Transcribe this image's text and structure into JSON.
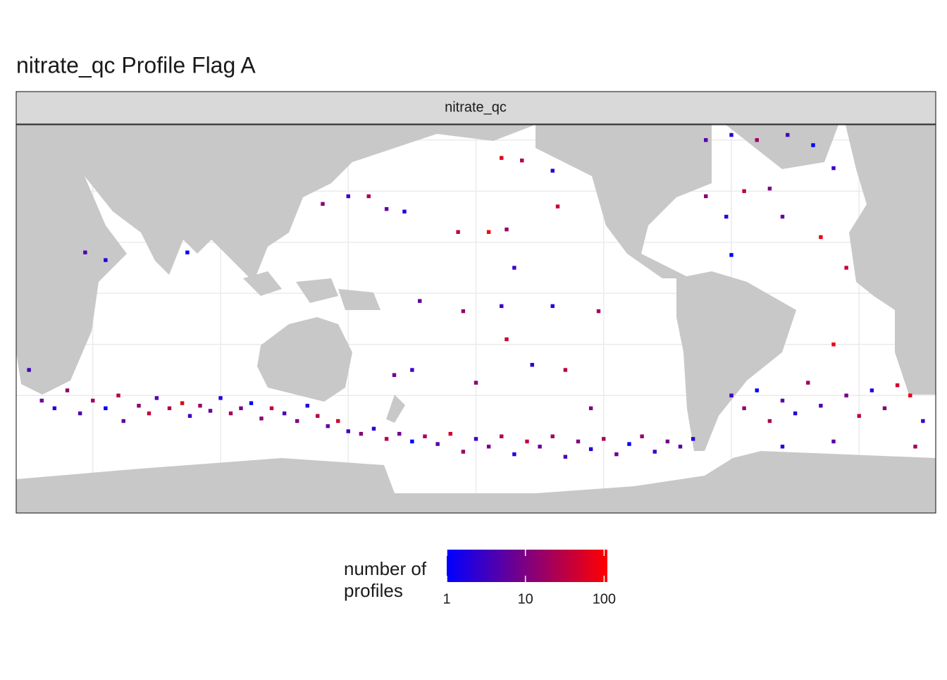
{
  "chart_data": {
    "type": "tile_map",
    "title": "nitrate_qc Profile Flag A",
    "facet": "nitrate_qc",
    "legend_title": "number of profiles",
    "color_scale": {
      "log": true,
      "low_color": "#0000ff",
      "high_color": "#ff0000",
      "limits": [
        1,
        110
      ],
      "ticks": [
        1,
        10,
        100
      ]
    },
    "xlim": [
      20,
      380
    ],
    "ylim": [
      -86,
      66
    ],
    "xticks": [
      50,
      100,
      150,
      200,
      250,
      300,
      350
    ],
    "yticks": [
      -40,
      -20,
      0,
      20,
      40,
      60
    ],
    "grid": true,
    "cells": {
      "lon": [
        25,
        30,
        35,
        40,
        45,
        50,
        55,
        60,
        62,
        68,
        72,
        75,
        80,
        85,
        88,
        92,
        96,
        100,
        104,
        108,
        112,
        116,
        120,
        125,
        130,
        134,
        138,
        142,
        146,
        150,
        155,
        160,
        165,
        170,
        175,
        180,
        185,
        190,
        195,
        200,
        205,
        210,
        215,
        220,
        225,
        230,
        235,
        240,
        245,
        250,
        255,
        260,
        265,
        270,
        275,
        280,
        285,
        168,
        175,
        200,
        222,
        235,
        245,
        212,
        210,
        195,
        178,
        230,
        248,
        300,
        305,
        310,
        315,
        320,
        325,
        330,
        335,
        340,
        345,
        350,
        355,
        360,
        365,
        370,
        375,
        372,
        340,
        320,
        140,
        150,
        158,
        165,
        172,
        193,
        205,
        212,
        210,
        218,
        232,
        230,
        215,
        290,
        300,
        310,
        322,
        332,
        305,
        315,
        320,
        298,
        335,
        345,
        340,
        300,
        290,
        47,
        55,
        87
      ],
      "lat": [
        -30,
        -42,
        -45,
        -38,
        -47,
        -42,
        -45,
        -40,
        -50,
        -44,
        -47,
        -41,
        -45,
        -43,
        -48,
        -44,
        -46,
        -41,
        -47,
        -45,
        -43,
        -49,
        -45,
        -47,
        -50,
        -44,
        -48,
        -52,
        -50,
        -54,
        -55,
        -53,
        -57,
        -55,
        -58,
        -56,
        -59,
        -55,
        -62,
        -57,
        -60,
        -56,
        -63,
        -58,
        -60,
        -56,
        -64,
        -58,
        -61,
        -57,
        -63,
        -59,
        -56,
        -62,
        -58,
        -60,
        -57,
        -32,
        -30,
        -35,
        -28,
        -30,
        -45,
        -18,
        -5,
        -7,
        -3,
        -5,
        -7,
        -40,
        -45,
        -38,
        -50,
        -42,
        -47,
        -35,
        -44,
        -20,
        -40,
        -48,
        -38,
        -45,
        -36,
        -40,
        -50,
        -60,
        -58,
        -60,
        35,
        38,
        38,
        33,
        32,
        24,
        24,
        25,
        53,
        52,
        34,
        48,
        10,
        60,
        62,
        60,
        62,
        58,
        40,
        41,
        30,
        30,
        22,
        10,
        49,
        15,
        38,
        16,
        13,
        16
      ],
      "count": [
        3,
        8,
        2,
        15,
        4,
        20,
        1,
        30,
        6,
        12,
        40,
        5,
        25,
        60,
        3,
        18,
        7,
        2,
        22,
        9,
        1,
        14,
        35,
        4,
        10,
        2,
        28,
        6,
        45,
        3,
        12,
        2,
        30,
        8,
        1,
        20,
        5,
        50,
        15,
        3,
        9,
        25,
        2,
        40,
        6,
        18,
        4,
        11,
        2,
        22,
        7,
        1,
        16,
        3,
        9,
        5,
        2,
        8,
        3,
        12,
        2,
        30,
        10,
        40,
        3,
        15,
        6,
        2,
        20,
        3,
        14,
        1,
        25,
        6,
        2,
        18,
        4,
        80,
        9,
        30,
        2,
        12,
        45,
        70,
        3,
        20,
        5,
        2,
        12,
        3,
        22,
        6,
        2,
        30,
        90,
        15,
        60,
        25,
        40,
        2,
        3,
        5,
        2,
        18,
        4,
        1,
        30,
        10,
        6,
        2,
        80,
        40,
        3,
        1,
        12,
        4,
        2,
        1
      ]
    }
  }
}
